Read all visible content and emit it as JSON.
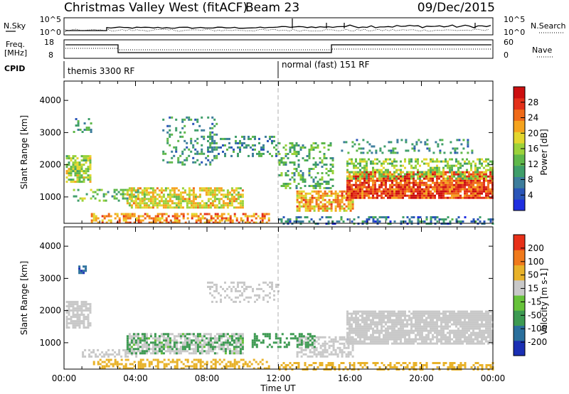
{
  "header": {
    "station": "Christmas Valley West (fitACF)",
    "beam": "Beam 23",
    "date": "09/Dec/2015"
  },
  "noise_panel": {
    "left_label": "N.Sky",
    "right_label": "N.Search",
    "left_ticks": [
      "10^5",
      "10^0"
    ],
    "right_ticks": [
      "10^5",
      "10^0"
    ]
  },
  "freq_panel": {
    "left_label_line1": "Freq.",
    "left_label_line2": "[MHz]",
    "right_label": "Nave",
    "left_ticks": [
      "18",
      "8"
    ],
    "right_ticks": [
      "60",
      "0"
    ]
  },
  "cpid_panel": {
    "label": "CPID",
    "programs": [
      {
        "name": "themis 3300 RF",
        "start_hour": 0
      },
      {
        "name": "normal (fast) 151 RF",
        "start_hour": 12
      }
    ]
  },
  "x_axis": {
    "label": "Time UT",
    "ticks": [
      "00:00",
      "04:00",
      "08:00",
      "12:00",
      "16:00",
      "20:00",
      "00:00"
    ]
  },
  "chart_data": [
    {
      "type": "heatmap",
      "title": "Power",
      "xlabel": "Time UT",
      "ylabel": "Slant Range [km]",
      "xlim_hours": [
        0,
        24
      ],
      "ylim": [
        180,
        4600
      ],
      "yticks": [
        1000,
        2000,
        3000,
        4000
      ],
      "colorbar": {
        "label": "Power [dB]",
        "ticks": [
          "28",
          "24",
          "20",
          "16",
          "12",
          "8",
          "4"
        ],
        "colors": [
          "#1f2ee0",
          "#2a55b8",
          "#3d7d9c",
          "#3f9e6a",
          "#5fb84a",
          "#9bd23a",
          "#e3d62e",
          "#f5a31e",
          "#ef6a18",
          "#e3301a",
          "#cc0f10"
        ]
      },
      "regions": [
        {
          "t": [
            0.1,
            1.5
          ],
          "r": [
            1500,
            2300
          ],
          "power": 15,
          "density": 0.75
        },
        {
          "t": [
            0.5,
            1.5
          ],
          "r": [
            3000,
            3450
          ],
          "power": 9,
          "density": 0.3
        },
        {
          "t": [
            0.5,
            4.5
          ],
          "r": [
            900,
            1250
          ],
          "power": 12,
          "density": 0.35
        },
        {
          "t": [
            3.5,
            10.0
          ],
          "r": [
            700,
            1300
          ],
          "power": 18,
          "density": 0.7
        },
        {
          "t": [
            1.5,
            11.5
          ],
          "r": [
            200,
            500
          ],
          "power": 22,
          "density": 0.55
        },
        {
          "t": [
            5.5,
            8.5
          ],
          "r": [
            2000,
            3500
          ],
          "power": 8,
          "density": 0.25
        },
        {
          "t": [
            8.0,
            12.0
          ],
          "r": [
            2300,
            2900
          ],
          "power": 8,
          "density": 0.3
        },
        {
          "t": [
            12.0,
            15.0
          ],
          "r": [
            1300,
            2700
          ],
          "power": 11,
          "density": 0.3
        },
        {
          "t": [
            13.0,
            16.2
          ],
          "r": [
            550,
            1200
          ],
          "power": 21,
          "density": 0.7
        },
        {
          "t": [
            15.5,
            23.0
          ],
          "r": [
            2400,
            2800
          ],
          "power": 8,
          "density": 0.2
        },
        {
          "t": [
            15.8,
            24.0
          ],
          "r": [
            1000,
            1800
          ],
          "power": 26,
          "density": 0.85
        },
        {
          "t": [
            15.8,
            24.0
          ],
          "r": [
            1600,
            2200
          ],
          "power": 14,
          "density": 0.5
        },
        {
          "t": [
            12.0,
            24.0
          ],
          "r": [
            200,
            400
          ],
          "power": 6,
          "density": 0.35
        }
      ]
    },
    {
      "type": "heatmap",
      "title": "Velocity",
      "xlabel": "Time UT",
      "ylabel": "Slant Range [km]",
      "xlim_hours": [
        0,
        24
      ],
      "ylim": [
        180,
        4600
      ],
      "yticks": [
        1000,
        2000,
        3000,
        4000
      ],
      "colorbar": {
        "label": "Velocity [m s-1]",
        "ticks": [
          "200",
          "100",
          "50",
          "15",
          "-15",
          "-50",
          "-100",
          "-200"
        ],
        "colors": [
          "#1a2fb4",
          "#2a6f9c",
          "#3d9a52",
          "#66c23a",
          "#c8c8c8",
          "#e8b22a",
          "#f07a1c",
          "#e83018"
        ],
        "ground_scatter_color": "#c8c8c8"
      },
      "regions": [
        {
          "t": [
            0.1,
            1.5
          ],
          "r": [
            1500,
            2300
          ],
          "velocity": 0,
          "density": 0.75
        },
        {
          "t": [
            1.0,
            4.0
          ],
          "r": [
            600,
            800
          ],
          "velocity": 0,
          "density": 0.55
        },
        {
          "t": [
            3.5,
            10.0
          ],
          "r": [
            700,
            1300
          ],
          "velocity": 0,
          "density": 0.65
        },
        {
          "t": [
            3.5,
            10.0
          ],
          "r": [
            700,
            1300
          ],
          "velocity": 40,
          "density": 0.3
        },
        {
          "t": [
            1.5,
            11.5
          ],
          "r": [
            200,
            500
          ],
          "velocity": -35,
          "density": 0.45
        },
        {
          "t": [
            8.0,
            12.0
          ],
          "r": [
            2300,
            2900
          ],
          "velocity": 0,
          "density": 0.3
        },
        {
          "t": [
            13.0,
            16.2
          ],
          "r": [
            550,
            1200
          ],
          "velocity": 0,
          "density": 0.55
        },
        {
          "t": [
            10.5,
            14.0
          ],
          "r": [
            900,
            1300
          ],
          "velocity": 60,
          "density": 0.4
        },
        {
          "t": [
            15.8,
            24.0
          ],
          "r": [
            1000,
            2000
          ],
          "velocity": 0,
          "density": 0.85
        },
        {
          "t": [
            12.0,
            24.0
          ],
          "r": [
            200,
            400
          ],
          "velocity": -30,
          "density": 0.45
        },
        {
          "t": [
            0.8,
            1.2
          ],
          "r": [
            3200,
            3400
          ],
          "velocity": 150,
          "density": 0.6
        }
      ]
    }
  ]
}
